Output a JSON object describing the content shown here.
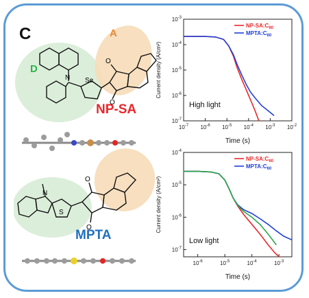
{
  "panel_letter": "C",
  "molecules": {
    "np_sa": {
      "name": "NP-SA",
      "donor_tag": "D",
      "acceptor_tag": "A",
      "atom_label_se": "Se",
      "atom_label_n": "N",
      "atom_label_o": "O"
    },
    "mpta": {
      "name": "MPTA",
      "atom_label_n": "N",
      "atom_label_s": "S",
      "atom_label_o": "O"
    }
  },
  "colors": {
    "np_sa": "#e8282b",
    "mpta": "#1f6fbf",
    "donor": "#2bb34a",
    "acceptor": "#e8893a",
    "frame": "#5b9bd5"
  },
  "chart_data": [
    {
      "type": "line",
      "ylabel": "Current density (A/cm²)",
      "xlabel": "Time (s)",
      "annotation": "High light",
      "xscale": "log",
      "yscale": "log",
      "xlim": [
        1e-07,
        0.01
      ],
      "ylim": [
        1e-07,
        0.001
      ],
      "x_ticks": [
        "10⁻⁷",
        "10⁻⁶",
        "10⁻⁵",
        "10⁻⁴",
        "10⁻³",
        "10⁻²"
      ],
      "y_ticks": [
        "10⁻⁷",
        "10⁻⁶",
        "10⁻⁵",
        "10⁻⁴",
        "10⁻³"
      ],
      "legend_position": "top-right",
      "series": [
        {
          "name": "NP-SA:C",
          "name_sub": "60",
          "color": "#e8282b",
          "x": [
            1e-07,
            3e-07,
            1e-06,
            3e-06,
            7e-06,
            1.2e-05,
            2e-05,
            3e-05,
            5e-05,
            8e-05,
            0.00012,
            0.0002,
            0.0003
          ],
          "y": [
            0.00021,
            0.00021,
            0.00021,
            0.0002,
            0.00016,
            9e-05,
            3.5e-05,
            1.2e-05,
            4e-06,
            1.6e-06,
            7e-07,
            2.5e-07,
            1e-07
          ]
        },
        {
          "name": "MPTA:C",
          "name_sub": "60",
          "color": "#1f3fd6",
          "x": [
            1e-07,
            3e-07,
            1e-06,
            3e-06,
            7e-06,
            1.2e-05,
            2e-05,
            3e-05,
            5e-05,
            8e-05,
            0.00012,
            0.0002,
            0.0004,
            0.0008,
            0.0015
          ],
          "y": [
            0.00021,
            0.00021,
            0.00021,
            0.0002,
            0.00016,
            9e-05,
            4e-05,
            1.6e-05,
            6e-06,
            2.6e-06,
            1.4e-06,
            8e-07,
            4e-07,
            2.5e-07,
            1.6e-07
          ]
        }
      ]
    },
    {
      "type": "line",
      "ylabel": "Current density (A/cm²)",
      "xlabel": "Time (s)",
      "annotation": "Low light",
      "xscale": "log",
      "yscale": "log",
      "xlim": [
        3e-07,
        0.003
      ],
      "ylim": [
        6e-08,
        0.0001
      ],
      "x_ticks": [
        "10⁻⁶",
        "10⁻⁵",
        "10⁻⁴",
        "10⁻³"
      ],
      "y_ticks": [
        "10⁻⁷",
        "10⁻⁶",
        "10⁻⁵",
        "10⁻⁴"
      ],
      "legend_position": "top-right",
      "series": [
        {
          "name": "NP-SA:C",
          "name_sub": "60",
          "color": "#e8282b",
          "x": [
            3e-07,
            1e-06,
            3e-06,
            6e-06,
            1e-05,
            1.5e-05,
            2e-05,
            3e-05,
            5e-05,
            0.0001,
            0.0002,
            0.0004,
            0.0007,
            0.001
          ],
          "y": [
            2.6e-05,
            2.6e-05,
            2.5e-05,
            2.2e-05,
            1.4e-05,
            7e-06,
            4e-06,
            2.2e-06,
            1.2e-06,
            6e-07,
            3e-07,
            1.4e-07,
            8e-08,
            6e-08
          ]
        },
        {
          "name": "MPTA:C",
          "name_sub": "60",
          "color": "#1f3fd6",
          "x": [
            3e-07,
            1e-06,
            3e-06,
            6e-06,
            1e-05,
            1.5e-05,
            2e-05,
            3e-05,
            5e-05,
            0.0001,
            0.0002,
            0.0004,
            0.0008,
            0.0015,
            0.003
          ],
          "y": [
            2.6e-05,
            2.6e-05,
            2.5e-05,
            2.2e-05,
            1.4e-05,
            7e-06,
            4e-06,
            2.4e-06,
            1.7e-06,
            1.3e-06,
            9e-07,
            6e-07,
            3.8e-07,
            2.6e-07,
            2e-07
          ]
        },
        {
          "name": "",
          "name_sub": "",
          "color": "#2aa84a",
          "x": [
            3e-07,
            1e-06,
            3e-06,
            6e-06,
            1e-05,
            1.5e-05,
            2e-05,
            3e-05,
            5e-05,
            0.0001,
            0.0002,
            0.0004,
            0.0008
          ],
          "y": [
            2.6e-05,
            2.6e-05,
            2.5e-05,
            2.2e-05,
            1.4e-05,
            7e-06,
            4e-06,
            2.3e-06,
            1.5e-06,
            1e-06,
            6e-07,
            3e-07,
            1.4e-07
          ]
        }
      ]
    }
  ]
}
